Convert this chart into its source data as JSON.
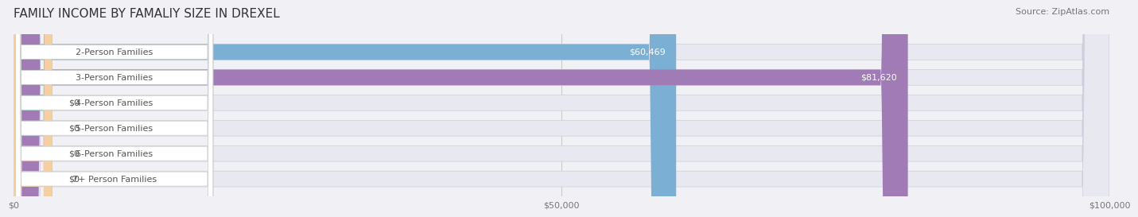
{
  "title": "FAMILY INCOME BY FAMALIY SIZE IN DREXEL",
  "source": "Source: ZipAtlas.com",
  "categories": [
    "2-Person Families",
    "3-Person Families",
    "4-Person Families",
    "5-Person Families",
    "6-Person Families",
    "7+ Person Families"
  ],
  "values": [
    60469,
    81620,
    0,
    0,
    0,
    0
  ],
  "bar_colors": [
    "#7bafd4",
    "#a07bb5",
    "#5dc8b8",
    "#a8a8d8",
    "#f4a0b0",
    "#f5cfa0"
  ],
  "label_colors": [
    "white",
    "white",
    "#555555",
    "#555555",
    "#555555",
    "#555555"
  ],
  "value_labels": [
    "$60,469",
    "$81,620",
    "$0",
    "$0",
    "$0",
    "$0"
  ],
  "xlim": [
    0,
    100000
  ],
  "xticks": [
    0,
    50000,
    100000
  ],
  "xtick_labels": [
    "$0",
    "$50,000",
    "$100,000"
  ],
  "bg_color": "#f0f0f5",
  "bar_bg_color": "#e8e8f0",
  "title_fontsize": 11,
  "source_fontsize": 8,
  "label_fontsize": 8,
  "value_fontsize": 8
}
